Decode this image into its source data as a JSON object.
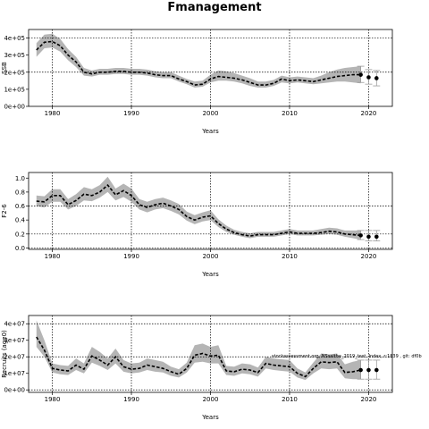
{
  "chart_data": {
    "title": "Fmanagement",
    "annotation": "stockassessment.org, NSsaithe_2019_test, Index, r:1839 , git: df0b",
    "panels": [
      {
        "type": "line",
        "ylabel": "SSB",
        "xlabel": "Years",
        "xlim": [
          1977,
          2023
        ],
        "ylim": [
          0,
          450000
        ],
        "xticks": [
          1980,
          1990,
          2000,
          2010,
          2020
        ],
        "xtick_labels": [
          "1980",
          "1990",
          "2000",
          "2010",
          "2020"
        ],
        "yticks": [
          0,
          100000,
          200000,
          300000,
          400000
        ],
        "ytick_labels": [
          "0e+00",
          "1e+05",
          "2e+05",
          "3e+05",
          "4e+05"
        ],
        "grid_x": [
          1980,
          1990,
          2000,
          2010,
          2020
        ],
        "grid_y": [
          400000,
          200000
        ],
        "years": [
          1978,
          1979,
          1980,
          1981,
          1982,
          1983,
          1984,
          1985,
          1986,
          1987,
          1988,
          1989,
          1990,
          1991,
          1992,
          1993,
          1994,
          1995,
          1996,
          1997,
          1998,
          1999,
          2000,
          2001,
          2002,
          2003,
          2004,
          2005,
          2006,
          2007,
          2008,
          2009,
          2010,
          2011,
          2012,
          2013,
          2014,
          2015,
          2016,
          2017,
          2018,
          2019
        ],
        "estimate": [
          330000,
          375000,
          380000,
          355000,
          300000,
          260000,
          200000,
          190000,
          200000,
          200000,
          205000,
          205000,
          200000,
          200000,
          195000,
          185000,
          180000,
          180000,
          160000,
          145000,
          125000,
          130000,
          160000,
          175000,
          170000,
          165000,
          155000,
          140000,
          125000,
          125000,
          135000,
          160000,
          150000,
          155000,
          150000,
          145000,
          155000,
          165000,
          175000,
          180000,
          185000,
          185000
        ],
        "lower": [
          290000,
          340000,
          345000,
          320000,
          270000,
          230000,
          180000,
          175000,
          185000,
          185000,
          190000,
          190000,
          185000,
          185000,
          180000,
          170000,
          165000,
          165000,
          145000,
          130000,
          110000,
          115000,
          140000,
          150000,
          150000,
          145000,
          135000,
          120000,
          110000,
          110000,
          120000,
          140000,
          135000,
          140000,
          135000,
          130000,
          135000,
          140000,
          145000,
          145000,
          140000,
          135000
        ],
        "upper": [
          370000,
          420000,
          425000,
          395000,
          335000,
          290000,
          225000,
          210000,
          220000,
          220000,
          225000,
          225000,
          220000,
          220000,
          215000,
          205000,
          200000,
          200000,
          180000,
          160000,
          145000,
          150000,
          185000,
          210000,
          205000,
          195000,
          180000,
          165000,
          145000,
          145000,
          155000,
          180000,
          170000,
          175000,
          170000,
          165000,
          180000,
          200000,
          215000,
          225000,
          230000,
          235000
        ],
        "forecast_years": [
          2019,
          2020,
          2021
        ],
        "forecast_points": [
          185000,
          170000,
          165000
        ],
        "forecast_lower": [
          140000,
          130000,
          120000
        ],
        "forecast_upper": [
          235000,
          215000,
          210000
        ]
      },
      {
        "type": "line",
        "ylabel": "F2-6",
        "xlabel": "Years",
        "xlim": [
          1977,
          2023
        ],
        "ylim": [
          -0.02,
          1.08
        ],
        "xticks": [
          1980,
          1990,
          2000,
          2010,
          2020
        ],
        "xtick_labels": [
          "1980",
          "1990",
          "2000",
          "2010",
          "2020"
        ],
        "yticks": [
          0.0,
          0.2,
          0.4,
          0.6,
          0.8,
          1.0
        ],
        "ytick_labels": [
          "0.0",
          "0.2",
          "0.4",
          "0.6",
          "0.8",
          "1.0"
        ],
        "grid_x": [
          1980,
          1990,
          2000,
          2010,
          2020
        ],
        "grid_y": [
          0.0,
          0.2,
          0.6
        ],
        "years": [
          1978,
          1979,
          1980,
          1981,
          1982,
          1983,
          1984,
          1985,
          1986,
          1987,
          1988,
          1989,
          1990,
          1991,
          1992,
          1993,
          1994,
          1995,
          1996,
          1997,
          1998,
          1999,
          2000,
          2001,
          2002,
          2003,
          2004,
          2005,
          2006,
          2007,
          2008,
          2009,
          2010,
          2011,
          2012,
          2013,
          2014,
          2015,
          2016,
          2017,
          2018,
          2019
        ],
        "estimate": [
          0.67,
          0.66,
          0.75,
          0.75,
          0.62,
          0.68,
          0.77,
          0.75,
          0.8,
          0.9,
          0.76,
          0.82,
          0.75,
          0.62,
          0.58,
          0.62,
          0.64,
          0.6,
          0.55,
          0.45,
          0.4,
          0.44,
          0.46,
          0.35,
          0.27,
          0.22,
          0.19,
          0.17,
          0.19,
          0.19,
          0.19,
          0.21,
          0.23,
          0.21,
          0.21,
          0.21,
          0.22,
          0.24,
          0.23,
          0.2,
          0.19,
          0.18
        ],
        "lower": [
          0.6,
          0.58,
          0.66,
          0.66,
          0.55,
          0.6,
          0.68,
          0.67,
          0.72,
          0.8,
          0.68,
          0.73,
          0.66,
          0.55,
          0.51,
          0.55,
          0.57,
          0.53,
          0.48,
          0.39,
          0.34,
          0.38,
          0.4,
          0.3,
          0.23,
          0.19,
          0.16,
          0.14,
          0.16,
          0.16,
          0.16,
          0.18,
          0.2,
          0.18,
          0.18,
          0.18,
          0.19,
          0.2,
          0.19,
          0.16,
          0.14,
          0.12
        ],
        "upper": [
          0.75,
          0.74,
          0.84,
          0.84,
          0.7,
          0.77,
          0.87,
          0.84,
          0.9,
          1.02,
          0.85,
          0.92,
          0.85,
          0.7,
          0.66,
          0.7,
          0.72,
          0.68,
          0.63,
          0.52,
          0.47,
          0.51,
          0.54,
          0.41,
          0.32,
          0.26,
          0.23,
          0.21,
          0.23,
          0.23,
          0.23,
          0.25,
          0.27,
          0.25,
          0.25,
          0.25,
          0.27,
          0.29,
          0.28,
          0.25,
          0.25,
          0.25
        ],
        "forecast_years": [
          2019,
          2020,
          2021
        ],
        "forecast_points": [
          0.18,
          0.16,
          0.16
        ],
        "forecast_lower": [
          0.12,
          0.1,
          0.1
        ],
        "forecast_upper": [
          0.25,
          0.25,
          0.25
        ]
      },
      {
        "type": "line",
        "ylabel": "Recruits (age0)",
        "xlabel": "Years",
        "xlim": [
          1977,
          2023
        ],
        "ylim": [
          -1500000,
          45000000
        ],
        "xticks": [
          1980,
          1990,
          2000,
          2010,
          2020
        ],
        "xtick_labels": [
          "1980",
          "1990",
          "2000",
          "2010",
          "2020"
        ],
        "yticks": [
          0,
          10000000,
          20000000,
          30000000,
          40000000
        ],
        "ytick_labels": [
          "0e+00",
          "1e+07",
          "2e+07",
          "3e+07",
          "4e+07"
        ],
        "grid_x": [
          1980,
          1990,
          2000,
          2010,
          2020
        ],
        "grid_y": [
          40000000,
          20000000,
          0
        ],
        "years": [
          1978,
          1979,
          1980,
          1981,
          1982,
          1983,
          1984,
          1985,
          1986,
          1987,
          1988,
          1989,
          1990,
          1991,
          1992,
          1993,
          1994,
          1995,
          1996,
          1997,
          1998,
          1999,
          2000,
          2001,
          2002,
          2003,
          2004,
          2005,
          2006,
          2007,
          2008,
          2009,
          2010,
          2011,
          2012,
          2013,
          2014,
          2015,
          2016,
          2017,
          2018,
          2019
        ],
        "estimate": [
          32000000,
          24000000,
          13000000,
          12000000,
          11500000,
          15000000,
          12500000,
          20500000,
          18000000,
          15000000,
          20000000,
          14000000,
          12500000,
          13000000,
          15000000,
          14000000,
          13000000,
          11000000,
          9500000,
          13000000,
          21000000,
          22000000,
          20500000,
          21000000,
          11500000,
          11000000,
          12500000,
          12000000,
          10500000,
          16000000,
          15000000,
          14500000,
          14000000,
          10000000,
          8000000,
          13000000,
          17000000,
          16500000,
          17000000,
          10500000,
          11000000,
          12000000
        ],
        "lower": [
          26000000,
          20000000,
          10500000,
          9500000,
          9000000,
          12000000,
          10000000,
          16500000,
          14500000,
          12000000,
          16000000,
          11000000,
          10000000,
          10500000,
          12000000,
          11000000,
          10500000,
          8500000,
          7500000,
          10500000,
          16500000,
          17000000,
          16000000,
          16000000,
          9000000,
          8500000,
          10000000,
          9500000,
          8000000,
          13000000,
          12000000,
          11500000,
          11000000,
          7500000,
          6000000,
          10000000,
          13000000,
          12500000,
          13000000,
          7000000,
          6500000,
          6500000
        ],
        "upper": [
          42000000,
          30000000,
          16000000,
          15000000,
          14500000,
          19000000,
          16000000,
          26000000,
          23000000,
          19000000,
          25000000,
          18000000,
          16000000,
          16500000,
          19000000,
          18000000,
          17000000,
          14000000,
          12500000,
          16500000,
          27000000,
          28000000,
          26000000,
          27000000,
          14500000,
          14000000,
          16000000,
          15500000,
          13500000,
          20000000,
          19000000,
          18500000,
          18000000,
          13000000,
          10500000,
          16500000,
          22000000,
          21500000,
          22000000,
          15500000,
          17000000,
          18000000
        ],
        "forecast_years": [
          2019,
          2020,
          2021
        ],
        "forecast_points": [
          12000000,
          12000000,
          12000000
        ],
        "forecast_lower": [
          6500000,
          6500000,
          6500000
        ],
        "forecast_upper": [
          18000000,
          18000000,
          18000000
        ]
      }
    ]
  }
}
